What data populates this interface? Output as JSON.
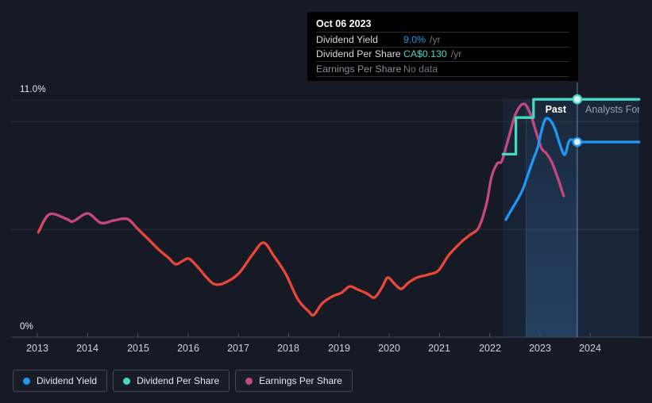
{
  "colors": {
    "background": "#151a24",
    "tooltip_bg": "#000000",
    "dividend_yield": "#2196f3",
    "dividend_per_share": "#45d9c5",
    "earnings_magenta": "#c3487f",
    "earnings_negative_red": "#ea4639",
    "highlight_band": "#2e82d2"
  },
  "tooltip": {
    "date": "Oct 06 2023",
    "rows": [
      {
        "label": "Dividend Yield",
        "value": "9.0%",
        "suffix": "/yr"
      },
      {
        "label": "Dividend Per Share",
        "value": "CA$0.130",
        "suffix": "/yr"
      },
      {
        "label": "Earnings Per Share",
        "value": "No data",
        "suffix": ""
      }
    ]
  },
  "axis": {
    "y_max_label": "11.0%",
    "y_zero_label": "0%",
    "years": [
      "2013",
      "2014",
      "2015",
      "2016",
      "2017",
      "2018",
      "2019",
      "2020",
      "2021",
      "2022",
      "2023",
      "2024"
    ]
  },
  "annotations": {
    "past": "Past",
    "forecast": "Analysts Forecasts"
  },
  "legend": [
    {
      "label": "Dividend Yield",
      "color": "#2196f3"
    },
    {
      "label": "Dividend Per Share",
      "color": "#45d9c5"
    },
    {
      "label": "Earnings Per Share",
      "color": "#c3487f"
    }
  ],
  "chart_data": {
    "type": "line",
    "x_range": [
      2012.5,
      2024.97
    ],
    "today": 2023.74,
    "y_axis": {
      "unit": "percent",
      "min": 0,
      "max": 11,
      "gridlines_pct": [
        0,
        5,
        10,
        11
      ]
    },
    "regions": [
      {
        "from": 2022.26,
        "to": 2022.72,
        "type": "highlight-weak"
      },
      {
        "from": 2022.72,
        "to": 2023.74,
        "type": "highlight-strong"
      },
      {
        "from": 2023.74,
        "to": 2024.97,
        "type": "forecast"
      }
    ],
    "series": [
      {
        "name": "Dividend Yield",
        "color": "#2196f3",
        "unit": "%",
        "current": 9.0,
        "points": [
          [
            2022.32,
            5.45
          ],
          [
            2022.4,
            5.78
          ],
          [
            2022.52,
            6.25
          ],
          [
            2022.65,
            6.81
          ],
          [
            2022.76,
            7.54
          ],
          [
            2022.87,
            8.28
          ],
          [
            2022.95,
            8.76
          ],
          [
            2023.03,
            9.57
          ],
          [
            2023.11,
            10.12
          ],
          [
            2023.21,
            10.04
          ],
          [
            2023.3,
            9.64
          ],
          [
            2023.39,
            8.98
          ],
          [
            2023.49,
            8.46
          ],
          [
            2023.57,
            9.05
          ],
          [
            2023.63,
            9.16
          ],
          [
            2023.7,
            9.03
          ],
          [
            2023.74,
            9.05
          ],
          [
            2024.0,
            9.05
          ],
          [
            2024.97,
            9.05
          ]
        ]
      },
      {
        "name": "Dividend Per Share",
        "color": "#45d9c5",
        "unit": "CA$",
        "style": "step",
        "current": 0.13,
        "display_map": {
          "value": 0.13,
          "aligns_with_pct": 11.03
        },
        "points": [
          [
            2022.26,
            0.1
          ],
          [
            2022.52,
            0.12
          ],
          [
            2022.87,
            0.13
          ],
          [
            2024.97,
            0.13
          ]
        ]
      },
      {
        "name": "Earnings Per Share",
        "unit": "left-axis-percent-equivalent (scale unlabeled)",
        "color_stops": [
          [
            2013.02,
            "#ea4639"
          ],
          [
            2013.16,
            "#c3487f"
          ],
          [
            2014.82,
            "#c3487f"
          ],
          [
            2015.12,
            "#ea4639"
          ],
          [
            2021.62,
            "#ea4639"
          ],
          [
            2021.88,
            "#c3487f"
          ]
        ],
        "points": [
          [
            2013.02,
            4.86
          ],
          [
            2013.24,
            5.7
          ],
          [
            2013.58,
            5.48
          ],
          [
            2013.71,
            5.37
          ],
          [
            2014.0,
            5.74
          ],
          [
            2014.26,
            5.3
          ],
          [
            2014.52,
            5.41
          ],
          [
            2014.79,
            5.48
          ],
          [
            2014.99,
            5.04
          ],
          [
            2015.2,
            4.56
          ],
          [
            2015.42,
            4.05
          ],
          [
            2015.61,
            3.68
          ],
          [
            2015.75,
            3.38
          ],
          [
            2015.89,
            3.53
          ],
          [
            2016.02,
            3.64
          ],
          [
            2016.21,
            3.2
          ],
          [
            2016.37,
            2.76
          ],
          [
            2016.52,
            2.46
          ],
          [
            2016.71,
            2.5
          ],
          [
            2017.0,
            2.94
          ],
          [
            2017.28,
            3.83
          ],
          [
            2017.5,
            4.38
          ],
          [
            2017.71,
            3.75
          ],
          [
            2017.94,
            2.94
          ],
          [
            2018.18,
            1.77
          ],
          [
            2018.39,
            1.21
          ],
          [
            2018.5,
            1.03
          ],
          [
            2018.66,
            1.55
          ],
          [
            2018.86,
            1.88
          ],
          [
            2019.05,
            2.06
          ],
          [
            2019.21,
            2.35
          ],
          [
            2019.37,
            2.21
          ],
          [
            2019.56,
            2.02
          ],
          [
            2019.71,
            1.84
          ],
          [
            2019.86,
            2.32
          ],
          [
            2019.97,
            2.76
          ],
          [
            2020.11,
            2.46
          ],
          [
            2020.24,
            2.24
          ],
          [
            2020.39,
            2.54
          ],
          [
            2020.55,
            2.76
          ],
          [
            2020.79,
            2.91
          ],
          [
            2020.98,
            3.09
          ],
          [
            2021.18,
            3.79
          ],
          [
            2021.42,
            4.38
          ],
          [
            2021.61,
            4.75
          ],
          [
            2021.78,
            5.08
          ],
          [
            2021.93,
            6.14
          ],
          [
            2022.04,
            7.47
          ],
          [
            2022.15,
            8.06
          ],
          [
            2022.24,
            8.17
          ],
          [
            2022.37,
            9.2
          ],
          [
            2022.52,
            10.38
          ],
          [
            2022.68,
            10.82
          ],
          [
            2022.81,
            10.34
          ],
          [
            2022.92,
            9.53
          ],
          [
            2023.03,
            8.76
          ],
          [
            2023.12,
            8.54
          ],
          [
            2023.23,
            8.13
          ],
          [
            2023.35,
            7.4
          ],
          [
            2023.47,
            6.55
          ]
        ]
      }
    ],
    "markers": [
      {
        "series": 0,
        "year": 2023.74,
        "value": 9.05
      },
      {
        "series": 1,
        "year": 2023.74,
        "value": 0.13
      }
    ]
  }
}
